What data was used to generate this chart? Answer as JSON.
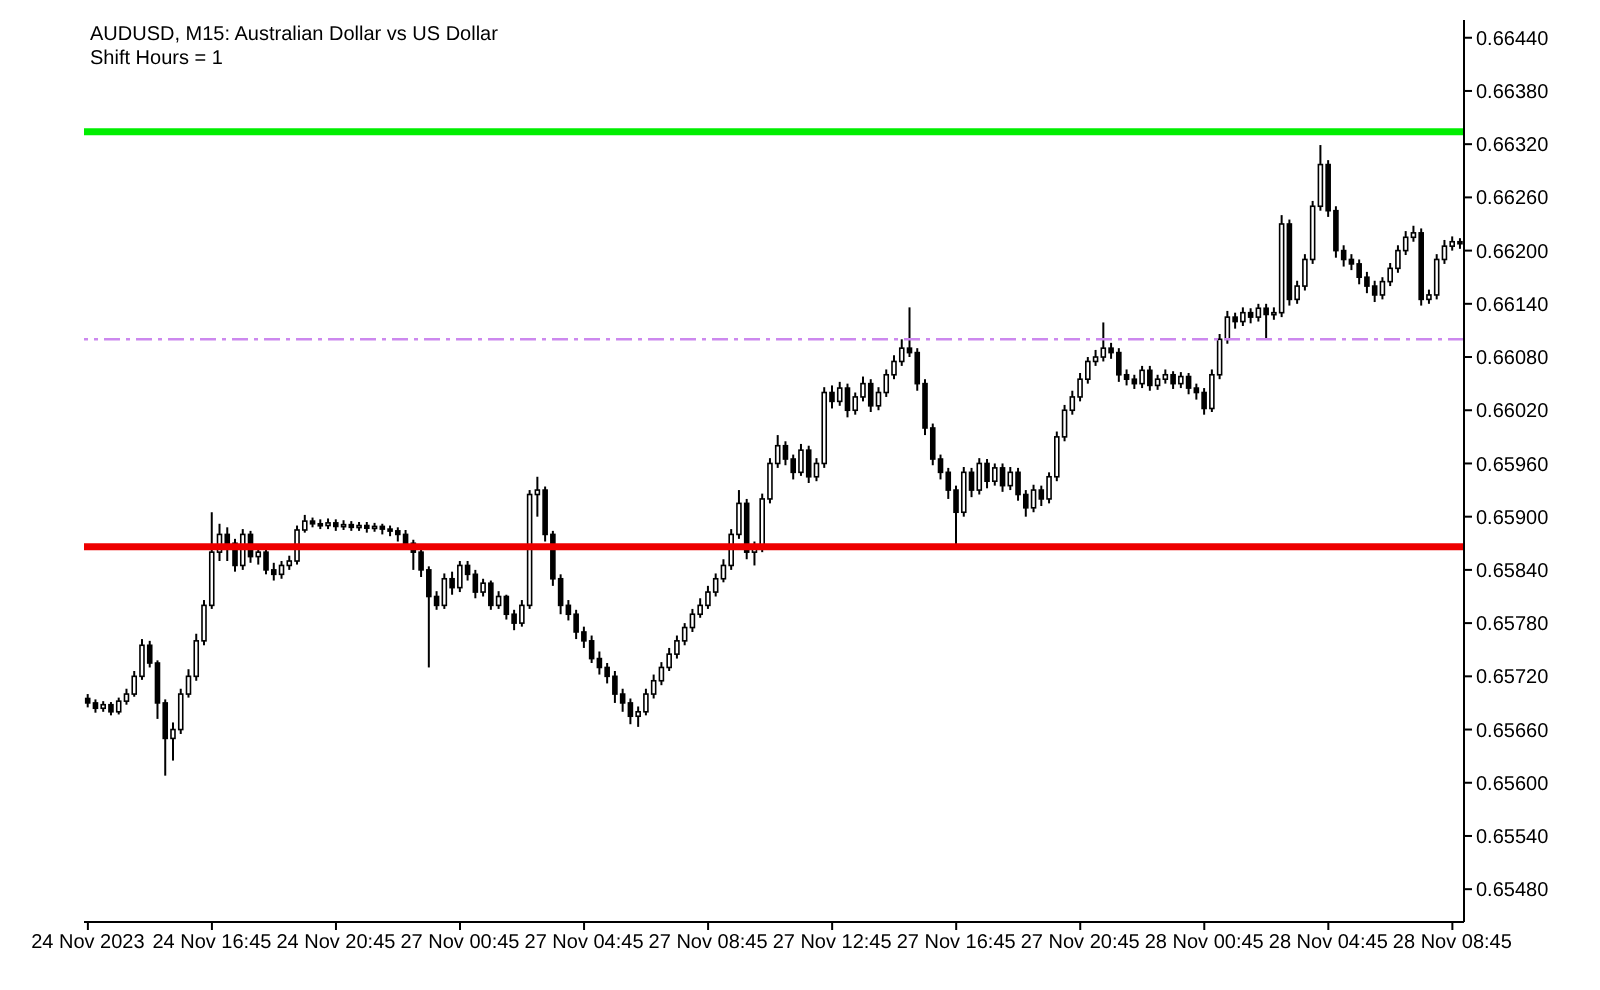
{
  "chart_data": {
    "type": "candlestick",
    "title": "AUDUSD, M15:  Australian Dollar vs US Dollar",
    "subtitle": "Shift Hours = 1",
    "color": "#000000",
    "categories": [
      "24 Nov 2023",
      null,
      null,
      null,
      null,
      null,
      null,
      null,
      null,
      null,
      null,
      null,
      null,
      null,
      null,
      null,
      "24 Nov 16:45",
      null,
      null,
      null,
      null,
      null,
      null,
      null,
      null,
      null,
      null,
      null,
      null,
      null,
      null,
      null,
      "24 Nov 20:45",
      null,
      null,
      null,
      null,
      null,
      null,
      null,
      null,
      null,
      null,
      null,
      null,
      null,
      null,
      null,
      "27 Nov 00:45",
      null,
      null,
      null,
      null,
      null,
      null,
      null,
      null,
      null,
      null,
      null,
      null,
      null,
      null,
      null,
      "27 Nov 04:45",
      null,
      null,
      null,
      null,
      null,
      null,
      null,
      null,
      null,
      null,
      null,
      null,
      null,
      null,
      null,
      "27 Nov 08:45",
      null,
      null,
      null,
      null,
      null,
      null,
      null,
      null,
      null,
      null,
      null,
      null,
      null,
      null,
      null,
      "27 Nov 12:45",
      null,
      null,
      null,
      null,
      null,
      null,
      null,
      null,
      null,
      null,
      null,
      null,
      null,
      null,
      null,
      "27 Nov 16:45",
      null,
      null,
      null,
      null,
      null,
      null,
      null,
      null,
      null,
      null,
      null,
      null,
      null,
      null,
      null,
      "27 Nov 20:45",
      null,
      null,
      null,
      null,
      null,
      null,
      null,
      null,
      null,
      null,
      null,
      null,
      null,
      null,
      null,
      "28 Nov 00:45",
      null,
      null,
      null,
      null,
      null,
      null,
      null,
      null,
      null,
      null,
      null,
      null,
      null,
      null,
      null,
      "28 Nov 04:45",
      null,
      null,
      null,
      null,
      null,
      null,
      null,
      null,
      null,
      null,
      null,
      null,
      null,
      null,
      null,
      "28 Nov 08:45",
      null
    ],
    "ohlc": [
      [
        0.65695,
        0.657,
        0.65685,
        0.6569
      ],
      [
        0.6569,
        0.65694,
        0.65679,
        0.65684
      ],
      [
        0.65684,
        0.65692,
        0.6568,
        0.65688
      ],
      [
        0.65688,
        0.65691,
        0.65676,
        0.6568
      ],
      [
        0.6568,
        0.65696,
        0.65677,
        0.65692
      ],
      [
        0.65692,
        0.65706,
        0.65688,
        0.657
      ],
      [
        0.657,
        0.65726,
        0.65697,
        0.6572
      ],
      [
        0.6572,
        0.65762,
        0.65716,
        0.65755
      ],
      [
        0.65755,
        0.6576,
        0.6573,
        0.65735
      ],
      [
        0.65735,
        0.65738,
        0.65672,
        0.6569
      ],
      [
        0.6569,
        0.65694,
        0.65608,
        0.6565
      ],
      [
        0.6565,
        0.65668,
        0.65625,
        0.6566
      ],
      [
        0.6566,
        0.65706,
        0.65655,
        0.657
      ],
      [
        0.657,
        0.65728,
        0.65696,
        0.6572
      ],
      [
        0.6572,
        0.65768,
        0.65715,
        0.6576
      ],
      [
        0.6576,
        0.65806,
        0.65755,
        0.658
      ],
      [
        0.658,
        0.65905,
        0.65796,
        0.6586
      ],
      [
        0.6586,
        0.65892,
        0.6585,
        0.6588
      ],
      [
        0.6588,
        0.65888,
        0.6585,
        0.6587
      ],
      [
        0.6587,
        0.65875,
        0.65838,
        0.65845
      ],
      [
        0.65845,
        0.65886,
        0.6584,
        0.6588
      ],
      [
        0.6588,
        0.65884,
        0.65848,
        0.65855
      ],
      [
        0.65855,
        0.65866,
        0.65846,
        0.6586
      ],
      [
        0.6586,
        0.65864,
        0.65835,
        0.6584
      ],
      [
        0.6584,
        0.65848,
        0.65828,
        0.65835
      ],
      [
        0.65835,
        0.6585,
        0.6583,
        0.65845
      ],
      [
        0.65845,
        0.65856,
        0.6584,
        0.6585
      ],
      [
        0.6585,
        0.6589,
        0.65846,
        0.65885
      ],
      [
        0.65885,
        0.65902,
        0.65882,
        0.65895
      ],
      [
        0.65895,
        0.65899,
        0.65888,
        0.65892
      ],
      [
        0.65892,
        0.65897,
        0.65886,
        0.6589
      ],
      [
        0.6589,
        0.65898,
        0.65886,
        0.65893
      ],
      [
        0.65893,
        0.65897,
        0.65884,
        0.65889
      ],
      [
        0.65889,
        0.65896,
        0.65885,
        0.65891
      ],
      [
        0.65891,
        0.65895,
        0.65884,
        0.65888
      ],
      [
        0.65888,
        0.65894,
        0.65884,
        0.6589
      ],
      [
        0.6589,
        0.65894,
        0.65882,
        0.65887
      ],
      [
        0.65887,
        0.65893,
        0.65883,
        0.65889
      ],
      [
        0.65889,
        0.65892,
        0.6588,
        0.65886
      ],
      [
        0.65886,
        0.6589,
        0.65878,
        0.65884
      ],
      [
        0.65884,
        0.65888,
        0.65872,
        0.6588
      ],
      [
        0.6588,
        0.65885,
        0.65864,
        0.6587
      ],
      [
        0.6587,
        0.65874,
        0.6584,
        0.6586
      ],
      [
        0.6586,
        0.65864,
        0.65832,
        0.6584
      ],
      [
        0.6584,
        0.65844,
        0.6573,
        0.6581
      ],
      [
        0.6581,
        0.65816,
        0.65795,
        0.658
      ],
      [
        0.658,
        0.65836,
        0.65796,
        0.6583
      ],
      [
        0.6583,
        0.65838,
        0.65812,
        0.6582
      ],
      [
        0.6582,
        0.6585,
        0.65815,
        0.65845
      ],
      [
        0.65845,
        0.6585,
        0.65828,
        0.65835
      ],
      [
        0.65835,
        0.6584,
        0.65808,
        0.65815
      ],
      [
        0.65815,
        0.6583,
        0.6581,
        0.65825
      ],
      [
        0.65825,
        0.65828,
        0.65795,
        0.658
      ],
      [
        0.658,
        0.65816,
        0.65796,
        0.6581
      ],
      [
        0.6581,
        0.65812,
        0.65784,
        0.6579
      ],
      [
        0.6579,
        0.65795,
        0.65772,
        0.6578
      ],
      [
        0.6578,
        0.65806,
        0.65776,
        0.658
      ],
      [
        0.658,
        0.6593,
        0.65796,
        0.65925
      ],
      [
        0.65925,
        0.65945,
        0.659,
        0.6593
      ],
      [
        0.6593,
        0.65934,
        0.65872,
        0.6588
      ],
      [
        0.6588,
        0.65884,
        0.65822,
        0.6583
      ],
      [
        0.6583,
        0.65835,
        0.6579,
        0.658
      ],
      [
        0.658,
        0.65806,
        0.65783,
        0.6579
      ],
      [
        0.6579,
        0.65795,
        0.65762,
        0.6577
      ],
      [
        0.6577,
        0.65776,
        0.65752,
        0.6576
      ],
      [
        0.6576,
        0.65766,
        0.65735,
        0.6574
      ],
      [
        0.6574,
        0.65748,
        0.65722,
        0.6573
      ],
      [
        0.6573,
        0.65735,
        0.65712,
        0.6572
      ],
      [
        0.6572,
        0.65726,
        0.6569,
        0.657
      ],
      [
        0.657,
        0.65706,
        0.6568,
        0.6569
      ],
      [
        0.6569,
        0.65695,
        0.65666,
        0.65675
      ],
      [
        0.65675,
        0.65686,
        0.65663,
        0.6568
      ],
      [
        0.6568,
        0.65706,
        0.65676,
        0.657
      ],
      [
        0.657,
        0.65722,
        0.65695,
        0.65715
      ],
      [
        0.65715,
        0.65736,
        0.6571,
        0.6573
      ],
      [
        0.6573,
        0.65752,
        0.65726,
        0.65745
      ],
      [
        0.65745,
        0.65766,
        0.6574,
        0.6576
      ],
      [
        0.6576,
        0.6578,
        0.65755,
        0.65775
      ],
      [
        0.65775,
        0.65796,
        0.6577,
        0.6579
      ],
      [
        0.6579,
        0.65808,
        0.65786,
        0.658
      ],
      [
        0.658,
        0.65822,
        0.65796,
        0.65815
      ],
      [
        0.65815,
        0.65836,
        0.6581,
        0.6583
      ],
      [
        0.6583,
        0.65852,
        0.65826,
        0.65845
      ],
      [
        0.65845,
        0.65886,
        0.6584,
        0.6588
      ],
      [
        0.6588,
        0.6593,
        0.65875,
        0.65915
      ],
      [
        0.65915,
        0.6592,
        0.65852,
        0.6586
      ],
      [
        0.6586,
        0.65872,
        0.65845,
        0.65865
      ],
      [
        0.65865,
        0.65926,
        0.6586,
        0.6592
      ],
      [
        0.6592,
        0.65966,
        0.65915,
        0.6596
      ],
      [
        0.6596,
        0.65992,
        0.65955,
        0.6598
      ],
      [
        0.6598,
        0.65985,
        0.65958,
        0.65965
      ],
      [
        0.65965,
        0.6597,
        0.65942,
        0.6595
      ],
      [
        0.6595,
        0.65982,
        0.65946,
        0.65975
      ],
      [
        0.65975,
        0.6598,
        0.65938,
        0.65945
      ],
      [
        0.65945,
        0.65966,
        0.6594,
        0.6596
      ],
      [
        0.6596,
        0.66046,
        0.65955,
        0.6604
      ],
      [
        0.6604,
        0.66048,
        0.66022,
        0.6603
      ],
      [
        0.6603,
        0.66052,
        0.66025,
        0.66045
      ],
      [
        0.66045,
        0.6605,
        0.66012,
        0.6602
      ],
      [
        0.6602,
        0.6604,
        0.66015,
        0.66035
      ],
      [
        0.66035,
        0.66058,
        0.6603,
        0.6605
      ],
      [
        0.6605,
        0.66055,
        0.66018,
        0.66025
      ],
      [
        0.66025,
        0.66046,
        0.6602,
        0.6604
      ],
      [
        0.6604,
        0.66066,
        0.66035,
        0.6606
      ],
      [
        0.6606,
        0.66082,
        0.66055,
        0.66075
      ],
      [
        0.66075,
        0.661,
        0.6607,
        0.6609
      ],
      [
        0.6609,
        0.66136,
        0.6608,
        0.66085
      ],
      [
        0.66085,
        0.6609,
        0.66042,
        0.6605
      ],
      [
        0.6605,
        0.66055,
        0.65992,
        0.66
      ],
      [
        0.66,
        0.66005,
        0.65958,
        0.65965
      ],
      [
        0.65965,
        0.6597,
        0.65942,
        0.6595
      ],
      [
        0.6595,
        0.65955,
        0.6592,
        0.6593
      ],
      [
        0.6593,
        0.65935,
        0.65868,
        0.65905
      ],
      [
        0.65905,
        0.65956,
        0.659,
        0.6595
      ],
      [
        0.6595,
        0.65955,
        0.65922,
        0.6593
      ],
      [
        0.6593,
        0.65966,
        0.65925,
        0.6596
      ],
      [
        0.6596,
        0.65965,
        0.65932,
        0.6594
      ],
      [
        0.6594,
        0.6596,
        0.65935,
        0.65955
      ],
      [
        0.65955,
        0.6596,
        0.65928,
        0.65935
      ],
      [
        0.65935,
        0.65956,
        0.6593,
        0.6595
      ],
      [
        0.6595,
        0.65955,
        0.65918,
        0.65925
      ],
      [
        0.65925,
        0.6593,
        0.659,
        0.6591
      ],
      [
        0.6591,
        0.65936,
        0.65905,
        0.6593
      ],
      [
        0.6593,
        0.65935,
        0.65912,
        0.6592
      ],
      [
        0.6592,
        0.6595,
        0.65915,
        0.65945
      ],
      [
        0.65945,
        0.65996,
        0.6594,
        0.6599
      ],
      [
        0.6599,
        0.66026,
        0.65985,
        0.6602
      ],
      [
        0.6602,
        0.66042,
        0.66015,
        0.66035
      ],
      [
        0.66035,
        0.66062,
        0.6603,
        0.66055
      ],
      [
        0.66055,
        0.6608,
        0.6605,
        0.66075
      ],
      [
        0.66075,
        0.66088,
        0.6607,
        0.6608
      ],
      [
        0.6608,
        0.66119,
        0.66075,
        0.6609
      ],
      [
        0.6609,
        0.66096,
        0.66078,
        0.66085
      ],
      [
        0.66085,
        0.6609,
        0.66052,
        0.6606
      ],
      [
        0.6606,
        0.66066,
        0.66048,
        0.66055
      ],
      [
        0.66055,
        0.6606,
        0.66044,
        0.6605
      ],
      [
        0.6605,
        0.6607,
        0.66045,
        0.66065
      ],
      [
        0.66065,
        0.6607,
        0.66042,
        0.66048
      ],
      [
        0.66048,
        0.6606,
        0.66043,
        0.66055
      ],
      [
        0.66055,
        0.66066,
        0.6605,
        0.6606
      ],
      [
        0.6606,
        0.66064,
        0.66044,
        0.6605
      ],
      [
        0.6605,
        0.66063,
        0.66045,
        0.66058
      ],
      [
        0.66058,
        0.66062,
        0.66038,
        0.66045
      ],
      [
        0.66045,
        0.6605,
        0.66032,
        0.6604
      ],
      [
        0.6604,
        0.66045,
        0.66015,
        0.66022
      ],
      [
        0.66022,
        0.66066,
        0.66018,
        0.6606
      ],
      [
        0.6606,
        0.66106,
        0.66055,
        0.661
      ],
      [
        0.661,
        0.66132,
        0.66095,
        0.66125
      ],
      [
        0.66125,
        0.6613,
        0.66112,
        0.6612
      ],
      [
        0.6612,
        0.66136,
        0.66115,
        0.6613
      ],
      [
        0.6613,
        0.66135,
        0.66118,
        0.66125
      ],
      [
        0.66125,
        0.6614,
        0.6612,
        0.66135
      ],
      [
        0.66135,
        0.6614,
        0.661,
        0.66128
      ],
      [
        0.66128,
        0.66136,
        0.66122,
        0.6613
      ],
      [
        0.6613,
        0.6624,
        0.66125,
        0.6623
      ],
      [
        0.6623,
        0.66235,
        0.66138,
        0.66145
      ],
      [
        0.66145,
        0.66166,
        0.6614,
        0.6616
      ],
      [
        0.6616,
        0.66196,
        0.66155,
        0.6619
      ],
      [
        0.6619,
        0.66256,
        0.66185,
        0.6625
      ],
      [
        0.6625,
        0.66319,
        0.66245,
        0.66297
      ],
      [
        0.66297,
        0.66302,
        0.66238,
        0.66245
      ],
      [
        0.66245,
        0.6625,
        0.66192,
        0.662
      ],
      [
        0.662,
        0.66206,
        0.66182,
        0.6619
      ],
      [
        0.6619,
        0.66196,
        0.66178,
        0.66185
      ],
      [
        0.66185,
        0.6619,
        0.66162,
        0.6617
      ],
      [
        0.6617,
        0.66176,
        0.66152,
        0.6616
      ],
      [
        0.6616,
        0.66166,
        0.66142,
        0.6615
      ],
      [
        0.6615,
        0.6617,
        0.66145,
        0.66165
      ],
      [
        0.66165,
        0.66186,
        0.6616,
        0.6618
      ],
      [
        0.6618,
        0.66206,
        0.66175,
        0.662
      ],
      [
        0.662,
        0.66222,
        0.66195,
        0.66215
      ],
      [
        0.66215,
        0.66228,
        0.6621,
        0.6622
      ],
      [
        0.6622,
        0.66225,
        0.66138,
        0.66145
      ],
      [
        0.66145,
        0.66156,
        0.6614,
        0.6615
      ],
      [
        0.6615,
        0.66196,
        0.66145,
        0.6619
      ],
      [
        0.6619,
        0.66212,
        0.66185,
        0.66205
      ],
      [
        0.66205,
        0.66216,
        0.662,
        0.6621
      ],
      [
        0.6621,
        0.66214,
        0.66202,
        0.66208
      ]
    ],
    "ylim": [
      0.65443,
      0.6646
    ],
    "yticks": [
      {
        "value": 0.6548,
        "label": "0.65480"
      },
      {
        "value": 0.6554,
        "label": "0.65540"
      },
      {
        "value": 0.656,
        "label": "0.65600"
      },
      {
        "value": 0.6566,
        "label": "0.65660"
      },
      {
        "value": 0.6572,
        "label": "0.65720"
      },
      {
        "value": 0.6578,
        "label": "0.65780"
      },
      {
        "value": 0.6584,
        "label": "0.65840"
      },
      {
        "value": 0.659,
        "label": "0.65900"
      },
      {
        "value": 0.6596,
        "label": "0.65960"
      },
      {
        "value": 0.6602,
        "label": "0.66020"
      },
      {
        "value": 0.6608,
        "label": "0.66080"
      },
      {
        "value": 0.6614,
        "label": "0.66140"
      },
      {
        "value": 0.662,
        "label": "0.66200"
      },
      {
        "value": 0.6626,
        "label": "0.66260"
      },
      {
        "value": 0.6632,
        "label": "0.66320"
      },
      {
        "value": 0.6638,
        "label": "0.66380"
      },
      {
        "value": 0.6644,
        "label": "0.66440"
      }
    ],
    "ref_lines": [
      {
        "axis": "y",
        "value": 0.66334,
        "color": "#00ee00",
        "line_style": "solid"
      },
      {
        "axis": "y",
        "value": 0.661,
        "color": "#cc88ee",
        "line_style": "dashed"
      },
      {
        "axis": "y",
        "value": 0.65866,
        "color": "#ee0000",
        "line_style": "solid"
      }
    ],
    "grid": false
  }
}
